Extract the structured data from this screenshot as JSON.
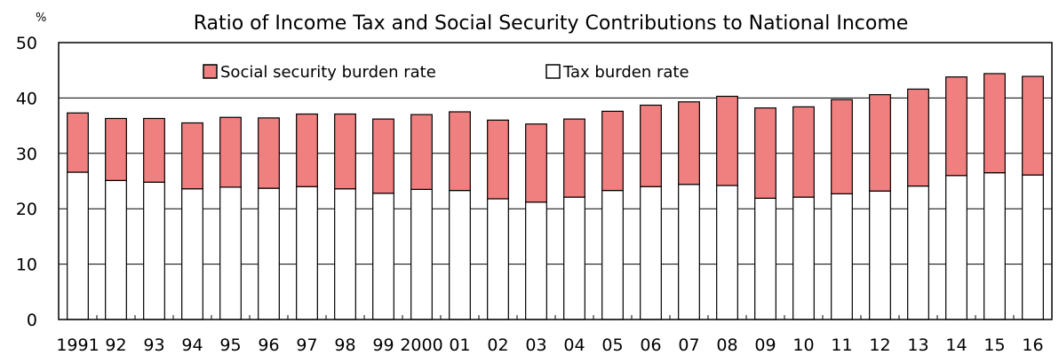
{
  "chart_data": {
    "type": "bar",
    "stacked": true,
    "title": "Ratio of Income Tax and Social Security Contributions to National Income",
    "y_unit": "%",
    "xlabel": "",
    "ylabel": "",
    "ylim": [
      0,
      50
    ],
    "yticks": [
      0,
      10,
      20,
      30,
      40,
      50
    ],
    "grid": "horizontal",
    "legend_position": "top-left",
    "categories": [
      "1991",
      "92",
      "93",
      "94",
      "95",
      "96",
      "97",
      "98",
      "99",
      "2000",
      "01",
      "02",
      "03",
      "04",
      "05",
      "06",
      "07",
      "08",
      "09",
      "10",
      "11",
      "12",
      "13",
      "14",
      "15",
      "16"
    ],
    "series": [
      {
        "name": "Tax burden rate",
        "color": "#ffffff",
        "values": [
          26.6,
          25.1,
          24.8,
          23.6,
          23.9,
          23.7,
          24.0,
          23.6,
          22.8,
          23.5,
          23.3,
          21.8,
          21.2,
          22.1,
          23.3,
          24.0,
          24.4,
          24.2,
          21.9,
          22.1,
          22.7,
          23.2,
          24.1,
          26.0,
          26.5,
          26.1
        ]
      },
      {
        "name": "Social security burden rate",
        "color": "#f08080",
        "values": [
          10.7,
          11.2,
          11.5,
          11.9,
          12.6,
          12.7,
          13.1,
          13.5,
          13.4,
          13.5,
          14.2,
          14.2,
          14.1,
          14.1,
          14.3,
          14.7,
          14.9,
          16.1,
          16.3,
          16.3,
          17.0,
          17.4,
          17.5,
          17.8,
          17.9,
          17.8
        ]
      }
    ]
  }
}
